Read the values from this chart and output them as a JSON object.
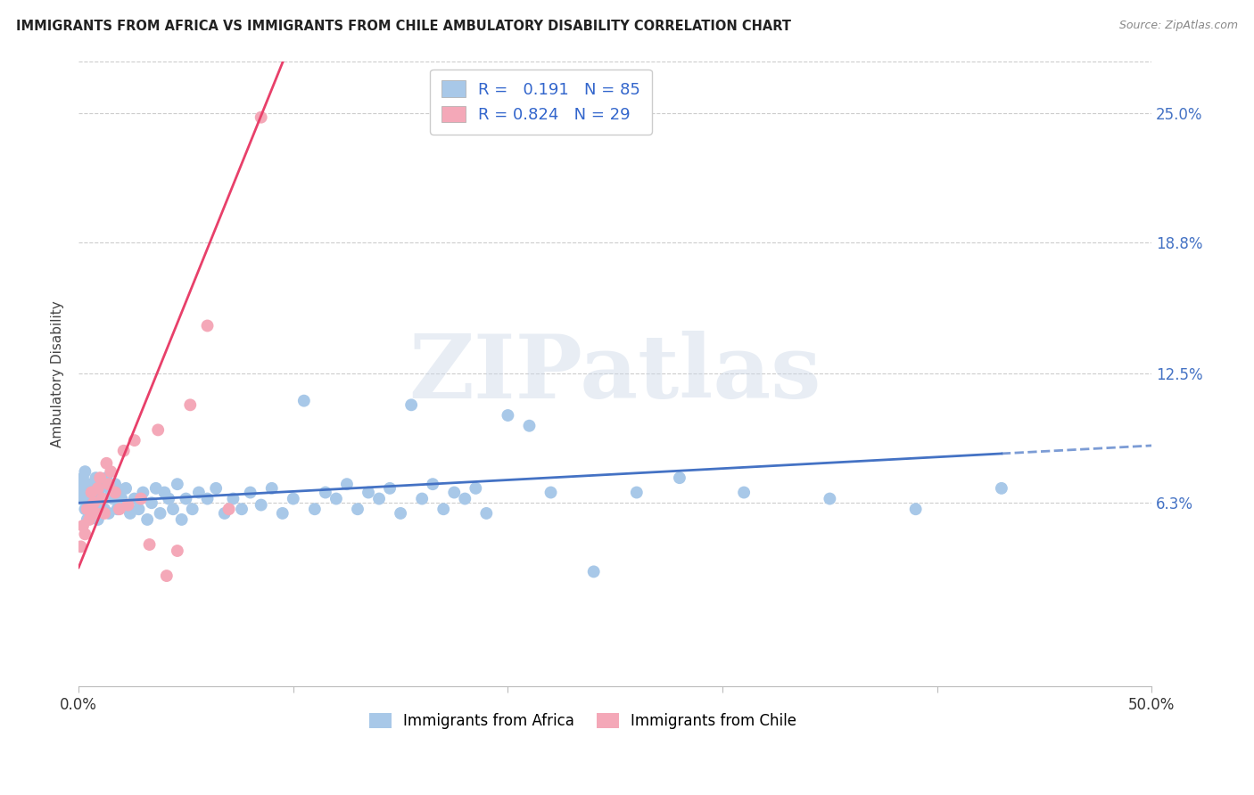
{
  "title": "IMMIGRANTS FROM AFRICA VS IMMIGRANTS FROM CHILE AMBULATORY DISABILITY CORRELATION CHART",
  "source": "Source: ZipAtlas.com",
  "ylabel": "Ambulatory Disability",
  "yticks_labels": [
    "25.0%",
    "18.8%",
    "12.5%",
    "6.3%"
  ],
  "ytick_vals": [
    0.25,
    0.188,
    0.125,
    0.063
  ],
  "xlim": [
    0.0,
    0.5
  ],
  "ylim": [
    -0.025,
    0.275
  ],
  "africa_color": "#a8c8e8",
  "chile_color": "#f4a8b8",
  "africa_line_color": "#4472c4",
  "chile_line_color": "#e8406a",
  "africa_R": 0.191,
  "africa_N": 85,
  "chile_R": 0.824,
  "chile_N": 29,
  "legend_label_africa": "Immigrants from Africa",
  "legend_label_chile": "Immigrants from Chile",
  "watermark_text": "ZIPatlas",
  "africa_scatter_x": [
    0.001,
    0.001,
    0.002,
    0.002,
    0.003,
    0.003,
    0.004,
    0.004,
    0.005,
    0.005,
    0.006,
    0.006,
    0.007,
    0.007,
    0.008,
    0.008,
    0.009,
    0.009,
    0.01,
    0.01,
    0.011,
    0.012,
    0.013,
    0.014,
    0.015,
    0.016,
    0.017,
    0.018,
    0.019,
    0.02,
    0.022,
    0.024,
    0.026,
    0.028,
    0.03,
    0.032,
    0.034,
    0.036,
    0.038,
    0.04,
    0.042,
    0.044,
    0.046,
    0.048,
    0.05,
    0.053,
    0.056,
    0.06,
    0.064,
    0.068,
    0.072,
    0.076,
    0.08,
    0.085,
    0.09,
    0.095,
    0.1,
    0.105,
    0.11,
    0.115,
    0.12,
    0.125,
    0.13,
    0.135,
    0.14,
    0.145,
    0.15,
    0.155,
    0.16,
    0.165,
    0.17,
    0.175,
    0.18,
    0.185,
    0.19,
    0.2,
    0.21,
    0.22,
    0.24,
    0.26,
    0.28,
    0.31,
    0.35,
    0.39,
    0.43
  ],
  "africa_scatter_y": [
    0.065,
    0.072,
    0.068,
    0.075,
    0.06,
    0.078,
    0.055,
    0.07,
    0.063,
    0.068,
    0.072,
    0.058,
    0.065,
    0.07,
    0.06,
    0.075,
    0.055,
    0.068,
    0.062,
    0.07,
    0.065,
    0.06,
    0.075,
    0.058,
    0.068,
    0.065,
    0.072,
    0.06,
    0.068,
    0.065,
    0.07,
    0.058,
    0.065,
    0.06,
    0.068,
    0.055,
    0.063,
    0.07,
    0.058,
    0.068,
    0.065,
    0.06,
    0.072,
    0.055,
    0.065,
    0.06,
    0.068,
    0.065,
    0.07,
    0.058,
    0.065,
    0.06,
    0.068,
    0.062,
    0.07,
    0.058,
    0.065,
    0.112,
    0.06,
    0.068,
    0.065,
    0.072,
    0.06,
    0.068,
    0.065,
    0.07,
    0.058,
    0.11,
    0.065,
    0.072,
    0.06,
    0.068,
    0.065,
    0.07,
    0.058,
    0.105,
    0.1,
    0.068,
    0.03,
    0.068,
    0.075,
    0.068,
    0.065,
    0.06,
    0.07
  ],
  "chile_scatter_x": [
    0.001,
    0.002,
    0.003,
    0.004,
    0.005,
    0.006,
    0.007,
    0.008,
    0.009,
    0.01,
    0.011,
    0.012,
    0.013,
    0.014,
    0.015,
    0.017,
    0.019,
    0.021,
    0.023,
    0.026,
    0.029,
    0.033,
    0.037,
    0.041,
    0.046,
    0.052,
    0.06,
    0.07,
    0.085
  ],
  "chile_scatter_y": [
    0.042,
    0.052,
    0.048,
    0.06,
    0.055,
    0.068,
    0.063,
    0.058,
    0.07,
    0.075,
    0.065,
    0.058,
    0.082,
    0.072,
    0.078,
    0.068,
    0.06,
    0.088,
    0.062,
    0.093,
    0.065,
    0.043,
    0.098,
    0.028,
    0.04,
    0.11,
    0.148,
    0.06,
    0.248
  ],
  "africa_line_slope": 0.055,
  "africa_line_intercept": 0.063,
  "chile_line_slope": 2.55,
  "chile_line_intercept": 0.032
}
